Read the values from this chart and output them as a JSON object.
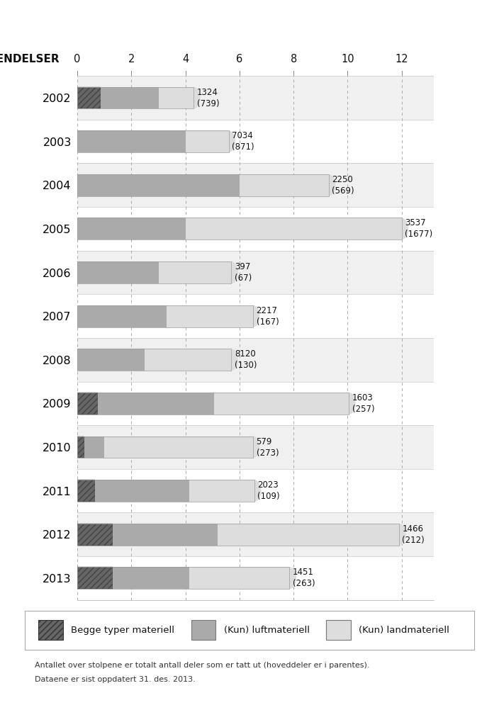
{
  "years": [
    "2002",
    "2003",
    "2004",
    "2005",
    "2006",
    "2007",
    "2008",
    "2009",
    "2010",
    "2011",
    "2012",
    "2013"
  ],
  "hatched_vals": [
    0.85,
    0.0,
    0.0,
    0.0,
    0.0,
    0.0,
    0.0,
    0.75,
    0.25,
    0.65,
    1.3,
    1.3
  ],
  "medium_vals": [
    2.15,
    4.0,
    6.0,
    4.0,
    3.0,
    3.3,
    2.5,
    4.3,
    0.75,
    3.5,
    3.9,
    2.85
  ],
  "light_vals": [
    1.3,
    1.6,
    3.3,
    8.0,
    2.7,
    3.2,
    3.2,
    5.0,
    5.5,
    2.4,
    6.7,
    3.7
  ],
  "annotations": [
    "1324\n(739)",
    "7034\n(871)",
    "2250\n(569)",
    "3537\n(1677)",
    "397\n(67)",
    "2217\n(167)",
    "8120\n(130)",
    "1603\n(257)",
    "579\n(273)",
    "2023\n(109)",
    "1466\n(212)",
    "1451\n(263)"
  ],
  "color_hatched": "#666666",
  "color_medium": "#aaaaaa",
  "color_light": "#dddddd",
  "color_header_bg": "#c8c8c8",
  "color_row_bg": "#f0f0f0",
  "color_row_alt": "#ffffff",
  "xticks": [
    0,
    2,
    4,
    6,
    8,
    10,
    12
  ],
  "xlim_max": 13.2,
  "header_label": "HENDELSER",
  "legend_labels": [
    "Begge typer materiell",
    "(Kun) luftmateriell",
    "(Kun) landmateriell"
  ],
  "footnote_line1": "Antallet over stolpene er totalt antall deler som er tatt ut (hoveddeler er i parentes).",
  "footnote_line2": "Dataene er sist oppdatert 31. des. 2013.",
  "bar_height": 0.5
}
